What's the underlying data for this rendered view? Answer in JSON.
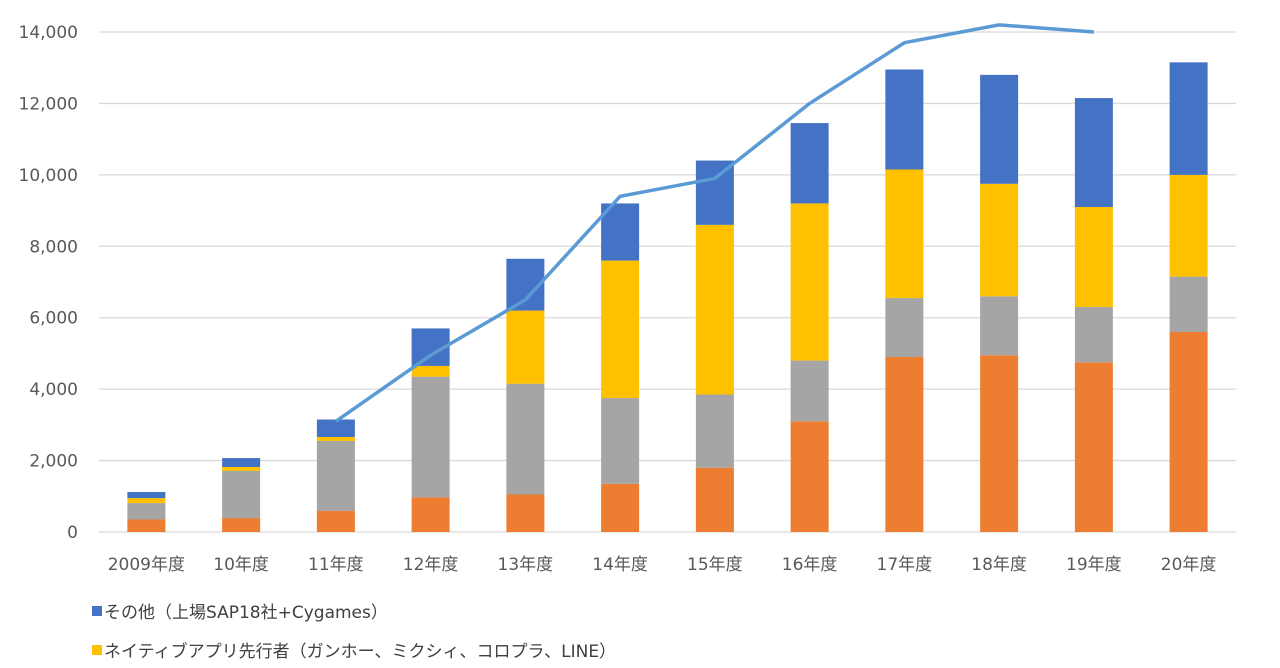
{
  "chart_data": {
    "type": "bar",
    "stacked": true,
    "title": "",
    "xlabel": "",
    "ylabel": "",
    "ylim": [
      0,
      14000
    ],
    "yticks": [
      0,
      2000,
      4000,
      6000,
      8000,
      10000,
      12000,
      14000
    ],
    "ytick_labels": [
      "0",
      "2,000",
      "4,000",
      "6,000",
      "8,000",
      "10,000",
      "12,000",
      "14,000"
    ],
    "grid": true,
    "legend_position": "bottom-left",
    "categories": [
      "2009年度",
      "10年度",
      "11年度",
      "12年度",
      "13年度",
      "14年度",
      "15年度",
      "16年度",
      "17年度",
      "18年度",
      "19年度",
      "20年度"
    ],
    "series": [
      {
        "name": "series-orange",
        "color": "#ED7D31",
        "values": [
          350,
          390,
          590,
          970,
          1050,
          1350,
          1800,
          3100,
          4900,
          4950,
          4750,
          5600
        ]
      },
      {
        "name": "series-gray",
        "color": "#A5A5A5",
        "values": [
          460,
          1320,
          1960,
          3380,
          3100,
          2400,
          2050,
          1700,
          1650,
          1650,
          1550,
          1550
        ]
      },
      {
        "name": "ネイティブアプリ先行者（ガンホー、ミクシィ、コロプラ、LINE）",
        "color": "#FFC000",
        "values": [
          140,
          110,
          110,
          300,
          2050,
          3850,
          4750,
          4400,
          3600,
          3150,
          2800,
          2850
        ]
      },
      {
        "name": "その他（上場SAP18社+Cygames）",
        "color": "#4472C4",
        "values": [
          170,
          250,
          490,
          1050,
          1450,
          1600,
          1800,
          2250,
          2800,
          3050,
          3050,
          3150
        ]
      }
    ],
    "line": {
      "name": "total-line",
      "color": "#5B9BD5",
      "values": [
        null,
        null,
        3100,
        4950,
        6500,
        9400,
        9900,
        12000,
        13700,
        14200,
        14000,
        null
      ]
    }
  },
  "legend": [
    {
      "label": "その他（上場SAP18社+Cygames）",
      "color": "#4472C4"
    },
    {
      "label": "ネイティブアプリ先行者（ガンホー、ミクシィ、コロプラ、LINE）",
      "color": "#FFC000"
    }
  ]
}
